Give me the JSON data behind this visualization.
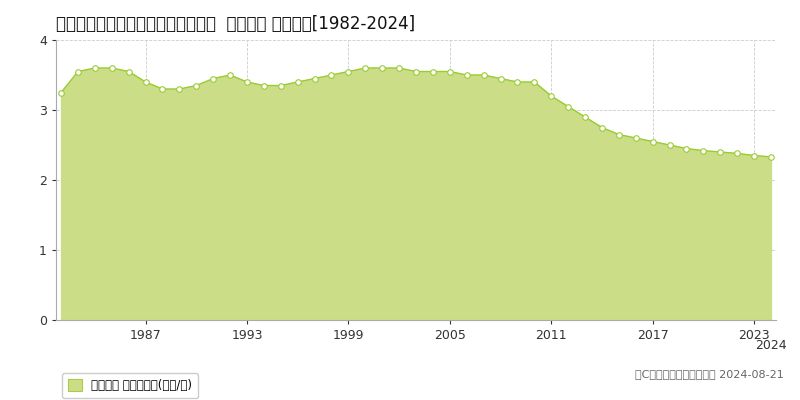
{
  "title": "北海道紋別市落石町２丁目７番５１  地価公示 地価推移[1982-2024]",
  "years": [
    1982,
    1983,
    1984,
    1985,
    1986,
    1987,
    1988,
    1989,
    1990,
    1991,
    1992,
    1993,
    1994,
    1995,
    1996,
    1997,
    1998,
    1999,
    2000,
    2001,
    2002,
    2003,
    2004,
    2005,
    2006,
    2007,
    2008,
    2009,
    2010,
    2011,
    2012,
    2013,
    2014,
    2015,
    2016,
    2017,
    2018,
    2019,
    2020,
    2021,
    2022,
    2023,
    2024
  ],
  "values": [
    3.25,
    3.55,
    3.6,
    3.6,
    3.55,
    3.4,
    3.3,
    3.3,
    3.35,
    3.45,
    3.5,
    3.4,
    3.35,
    3.35,
    3.4,
    3.45,
    3.5,
    3.55,
    3.6,
    3.6,
    3.6,
    3.55,
    3.55,
    3.55,
    3.5,
    3.5,
    3.45,
    3.4,
    3.4,
    3.2,
    3.05,
    2.9,
    2.75,
    2.65,
    2.6,
    2.55,
    2.5,
    2.45,
    2.42,
    2.4,
    2.38,
    2.35,
    2.33
  ],
  "line_color": "#99cc33",
  "fill_color": "#ccdd88",
  "marker_facecolor": "#ffffff",
  "marker_edgecolor": "#99cc33",
  "ylim": [
    0,
    4
  ],
  "yticks": [
    0,
    1,
    2,
    3,
    4
  ],
  "xticks": [
    1987,
    1993,
    1999,
    2005,
    2011,
    2017,
    2023
  ],
  "extra_xlabel": "2024",
  "grid_color": "#cccccc",
  "bg_color": "#ffffff",
  "plot_bg_color": "#ffffff",
  "legend_label": "地価公示 平均坪単価(万円/坪)",
  "legend_square_color": "#ccdd88",
  "legend_square_edge": "#aacc44",
  "copyright_text": "（C）土地価格ドットコム 2024-08-21",
  "title_fontsize": 12,
  "tick_fontsize": 9,
  "legend_fontsize": 8.5,
  "copyright_fontsize": 8
}
